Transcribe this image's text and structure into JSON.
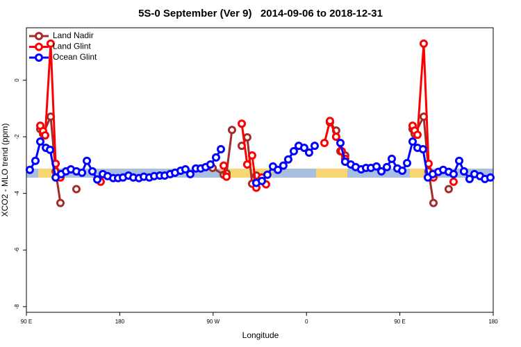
{
  "chart_data": {
    "type": "line",
    "title": "5S-0 September (Ver 9)   2014-09-06 to 2018-12-31",
    "x_label": "Longitude",
    "y_label": "XCO2 - MLO trend (ppm)",
    "xlim": [
      90,
      540
    ],
    "ylim": [
      -8.2,
      1.85
    ],
    "xticks": [
      {
        "value": 90,
        "label": "90 E"
      },
      180,
      {
        "value": 270,
        "label": "90 W"
      },
      {
        "value": 360,
        "label": "0"
      },
      {
        "value": 450,
        "label": "90 E"
      },
      {
        "value": 540,
        "label": "180"
      }
    ],
    "yticks": [
      -8,
      -6,
      -4,
      -2,
      0
    ],
    "grid": false,
    "legend": "top-left",
    "series": [
      {
        "name": "Land Nadir",
        "color": "#a52a2a",
        "x": [
          103.4,
          106.1,
          113.4,
          118.2,
          122.8,
          null,
          138.2,
          null,
          269.5,
          280.2,
          282.9,
          288.2,
          null,
          297.6,
          302.9,
          307.6,
          311.6,
          317.0,
          null,
          382.6,
          388.6,
          392.7,
          397.3,
          null,
          462.3,
          464.3,
          473.0,
          477.7,
          482.4,
          null,
          497.1
        ],
        "values": [
          -1.73,
          -1.9,
          -1.29,
          -3.22,
          -4.34,
          null,
          -3.85,
          null,
          -3.1,
          -3.34,
          -3.29,
          -1.76,
          null,
          -2.32,
          -2.02,
          -3.66,
          -3.37,
          -3.44,
          null,
          -1.49,
          -1.78,
          -2.51,
          -2.66,
          null,
          -1.73,
          -1.9,
          -1.29,
          -3.22,
          -4.34,
          null,
          -3.85
        ]
      },
      {
        "name": "Land Glint",
        "color": "#ff0000",
        "x": [
          103.4,
          106.1,
          108.1,
          113.4,
          118.2,
          122.8,
          null,
          161.6,
          null,
          280.2,
          282.9,
          null,
          297.6,
          302.9,
          307.6,
          311.6,
          317.0,
          321.0,
          null,
          377.3,
          382.6,
          388.6,
          394.0,
          397.3,
          null,
          462.3,
          464.3,
          467.0,
          473.0,
          477.7,
          482.4,
          null,
          501.8
        ],
        "values": [
          -1.61,
          -1.8,
          -1.95,
          1.29,
          -2.95,
          -3.44,
          null,
          -3.59,
          null,
          -3.02,
          -3.41,
          null,
          -1.54,
          -2.98,
          -2.66,
          -3.8,
          -3.44,
          -3.68,
          null,
          -2.22,
          -1.44,
          -2.0,
          -2.51,
          -2.78,
          null,
          -1.61,
          -1.78,
          -1.93,
          1.29,
          -2.95,
          -3.44,
          null,
          -3.59
        ]
      },
      {
        "name": "Ocean Glint",
        "color": "#0000ff",
        "x": [
          93.3,
          98.7,
          103.4,
          108.8,
          112.8,
          118.2,
          123.5,
          128.2,
          132.9,
          138.2,
          143.6,
          148.3,
          153.6,
          158.3,
          163.7,
          168.3,
          173.7,
          178.4,
          183.1,
          188.4,
          193.1,
          198.5,
          203.2,
          208.5,
          213.2,
          218.6,
          223.3,
          228.6,
          233.3,
          238.7,
          243.3,
          248.0,
          253.4,
          258.1,
          262.8,
          267.4,
          272.8,
          277.5,
          null,
          311.6,
          317.0,
          322.3,
          327.7,
          332.4,
          337.7,
          342.4,
          347.8,
          352.5,
          357.8,
          362.5,
          367.9,
          null,
          392.7,
          397.3,
          402.7,
          407.4,
          412.7,
          417.4,
          422.1,
          427.5,
          432.2,
          437.5,
          442.2,
          447.6,
          452.3,
          457.0,
          462.3,
          467.0,
          472.3,
          477.0,
          481.7,
          487.1,
          491.8,
          497.1,
          501.8,
          507.2,
          511.8,
          517.2,
          521.9,
          527.3,
          532.0,
          537.3
        ],
        "values": [
          -3.17,
          -2.85,
          -2.17,
          -2.39,
          -2.46,
          -3.44,
          -3.32,
          -3.22,
          -3.15,
          -3.22,
          -3.27,
          -2.85,
          -3.22,
          -3.51,
          -3.32,
          -3.39,
          -3.46,
          -3.46,
          -3.44,
          -3.37,
          -3.44,
          -3.46,
          -3.41,
          -3.44,
          -3.39,
          -3.37,
          -3.37,
          -3.32,
          -3.27,
          -3.2,
          -3.15,
          -3.32,
          -3.12,
          -3.12,
          -3.07,
          -2.98,
          -2.73,
          -2.44,
          null,
          -3.63,
          -3.56,
          -3.34,
          -3.05,
          -3.17,
          -3.02,
          -2.8,
          -2.51,
          -2.32,
          -2.39,
          -2.56,
          -2.32,
          null,
          -2.22,
          -2.88,
          -2.98,
          -3.07,
          -3.15,
          -3.1,
          -3.1,
          -3.05,
          -3.22,
          -3.07,
          -2.78,
          -3.12,
          -3.2,
          -2.93,
          -2.17,
          -2.39,
          -2.44,
          -3.44,
          -3.32,
          -3.24,
          -3.17,
          -3.24,
          -3.32,
          -2.85,
          -3.22,
          -3.49,
          -3.32,
          -3.39,
          -3.49,
          -3.44
        ]
      }
    ]
  }
}
